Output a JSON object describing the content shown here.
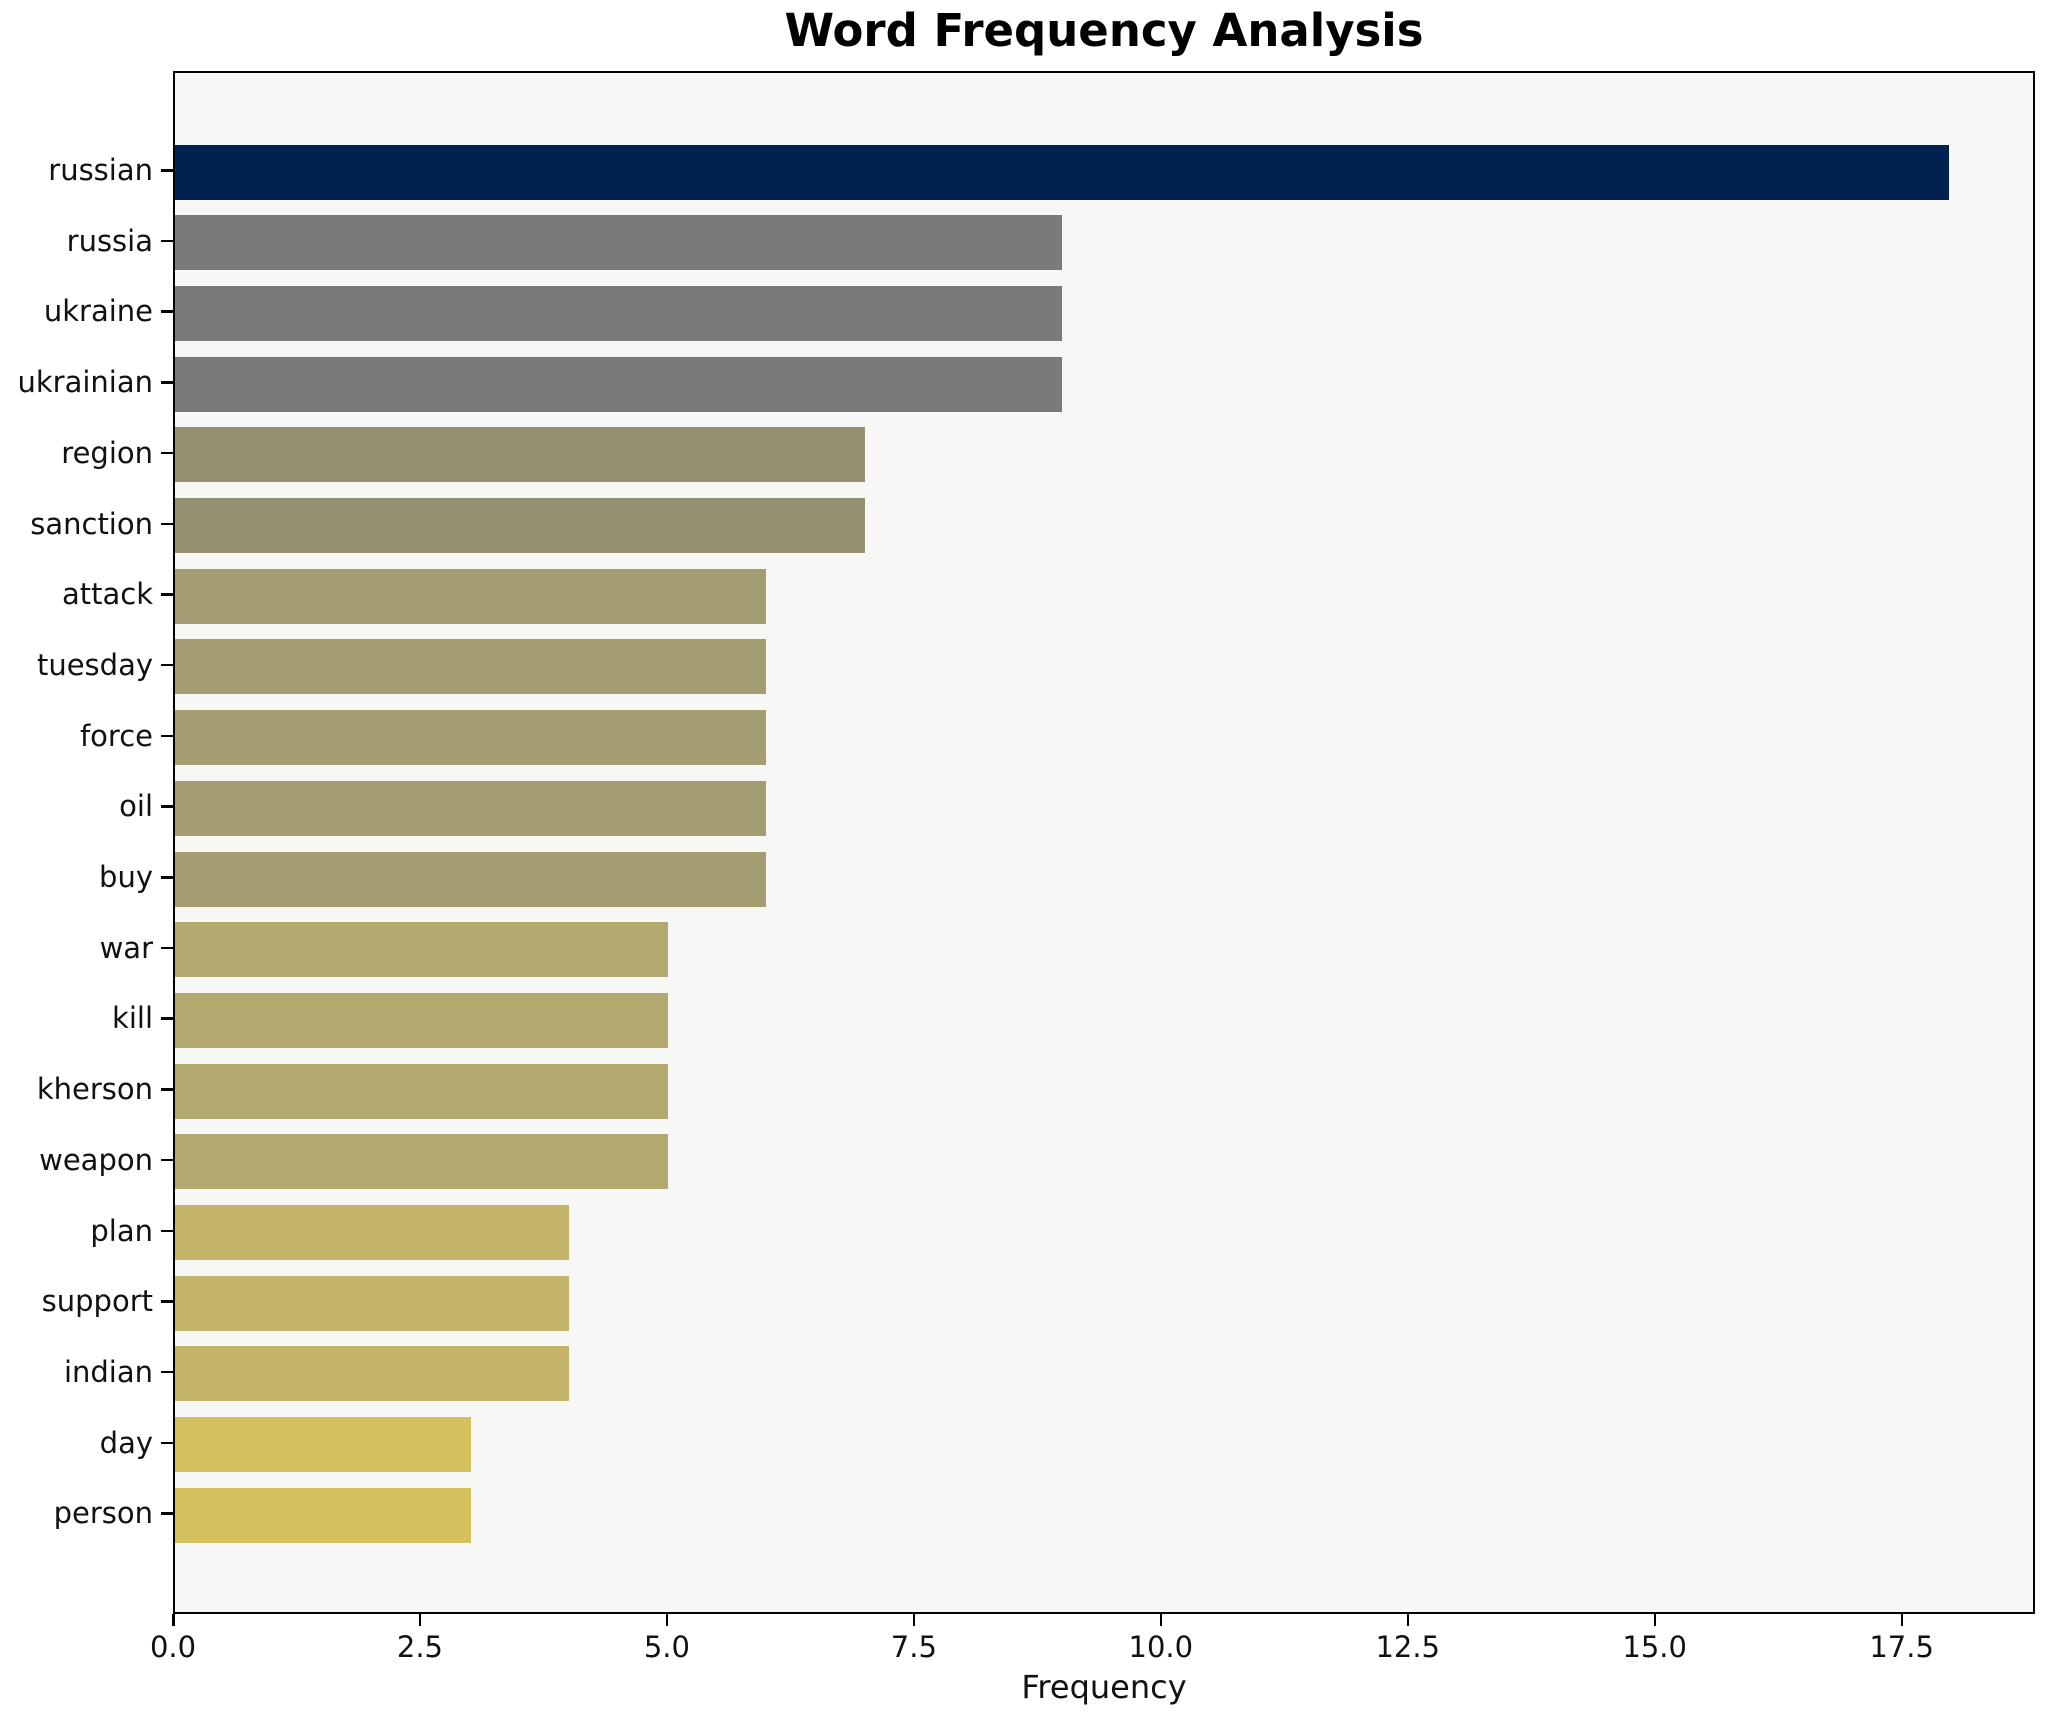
{
  "title": "Word Frequency Analysis",
  "chart_data": {
    "type": "bar",
    "orientation": "horizontal",
    "title": "Word Frequency Analysis",
    "xlabel": "Frequency",
    "ylabel": "",
    "categories": [
      "russian",
      "russia",
      "ukraine",
      "ukrainian",
      "region",
      "sanction",
      "attack",
      "tuesday",
      "force",
      "oil",
      "buy",
      "war",
      "kill",
      "kherson",
      "weapon",
      "plan",
      "support",
      "indian",
      "day",
      "person"
    ],
    "values": [
      18,
      9,
      9,
      9,
      7,
      7,
      6,
      6,
      6,
      6,
      6,
      5,
      5,
      5,
      5,
      4,
      4,
      4,
      3,
      3
    ],
    "bar_colors": [
      "#00224e",
      "#7b7a78",
      "#7b7a78",
      "#7b7a78",
      "#95906f",
      "#95906f",
      "#a59d72",
      "#a59d72",
      "#a59d72",
      "#a59d72",
      "#a59d72",
      "#b2a96f",
      "#b2a96f",
      "#b2a96f",
      "#b2a96f",
      "#c4b469",
      "#c4b469",
      "#c4b469",
      "#d4c05f",
      "#d4c05f"
    ],
    "xlim": [
      0,
      18.85
    ],
    "xticks": [
      0,
      2.5,
      5,
      7.5,
      10,
      12.5,
      15,
      17.5
    ],
    "xtick_labels": [
      "0.0",
      "2.5",
      "5.0",
      "7.5",
      "10.0",
      "12.5",
      "15.0",
      "17.5"
    ],
    "grid": false,
    "legend": "none",
    "plot_background": "#f7f7f5",
    "figure_background": "#ffffff",
    "accent_color": "#00224e"
  }
}
